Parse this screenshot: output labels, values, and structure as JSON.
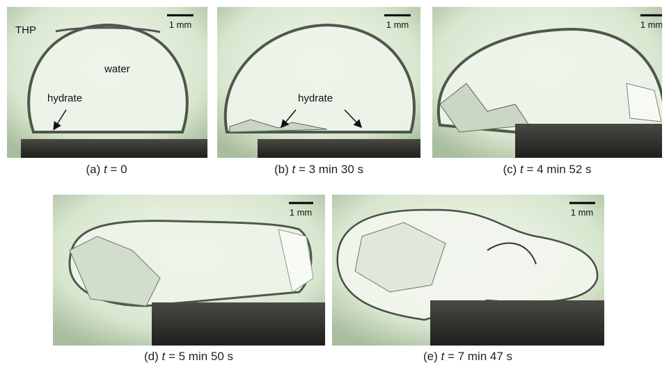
{
  "panels": [
    {
      "caption": {
        "label": "(a)",
        "variable": "t",
        "value": "= 0"
      },
      "scale_bar": "1 mm",
      "annotations": [
        "THP",
        "water",
        "hydrate"
      ]
    },
    {
      "caption": {
        "label": "(b)",
        "variable": "t",
        "value": "= 3 min 30 s"
      },
      "scale_bar": "1 mm",
      "annotations": [
        "hydrate"
      ]
    },
    {
      "caption": {
        "label": "(c)",
        "variable": "t",
        "value": "= 4 min 52 s"
      },
      "scale_bar": "1 mm"
    },
    {
      "caption": {
        "label": "(d)",
        "variable": "t",
        "value": "= 5 min 50 s"
      },
      "scale_bar": "1 mm"
    },
    {
      "caption": {
        "label": "(e)",
        "variable": "t",
        "value": "= 7 min 47 s"
      },
      "scale_bar": "1 mm"
    }
  ]
}
